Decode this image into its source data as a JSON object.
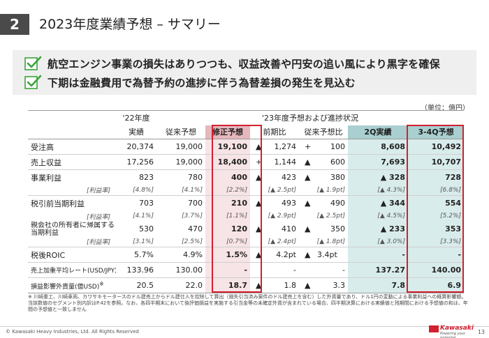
{
  "header": {
    "section_number": "2",
    "title": "2023年度業績予想 – サマリー"
  },
  "points": [
    "航空エンジン事業の損失はありつつも、収益改善や円安の追い風により黒字を確保",
    "下期は金融費用で為替予約の進捗に伴う為替差損の発生を見込む"
  ],
  "unit": "（単位：億円）",
  "table": {
    "head_fy22_top": "'22年度",
    "head_fy22_bottom": "実績",
    "head_fy23_group": "'23年度予想および進捗状況",
    "columns": [
      "従来予想",
      "修正予想",
      "前期比",
      "従来予想比",
      "2Q実績",
      "3-4Q予想"
    ],
    "rows": {
      "orders": {
        "label": "受注高",
        "fy22": "20,374",
        "prev": "19,000",
        "rev": "19,100",
        "yoy_sym": "▲",
        "yoy": "1,274",
        "vsprev_sym": "+",
        "vsprev": "100",
        "q2": "8,608",
        "q34": "10,492"
      },
      "revenue": {
        "label": "売上収益",
        "fy22": "17,256",
        "prev": "19,000",
        "rev": "18,400",
        "yoy_sym": "+",
        "yoy": "1,144",
        "vsprev_sym": "▲",
        "vsprev": "600",
        "q2": "7,693",
        "q34": "10,707"
      },
      "op": {
        "label": "事業利益",
        "fy22": "823",
        "prev": "780",
        "rev": "400",
        "yoy_sym": "▲",
        "yoy": "423",
        "vsprev_sym": "▲",
        "vsprev": "380",
        "q2": "▲ 328",
        "q34": "728"
      },
      "op_margin": {
        "label": "[利益率]",
        "fy22": "[4.8%]",
        "prev": "[4.1%]",
        "rev": "[2.2%]",
        "yoy": "[▲ 2.5pt]",
        "vsprev": "[▲ 1.9pt]",
        "q2": "[▲ 4.3%]",
        "q34": "[6.8%]"
      },
      "pretax": {
        "label": "税引前当期利益",
        "fy22": "703",
        "prev": "700",
        "rev": "210",
        "yoy_sym": "▲",
        "yoy": "493",
        "vsprev_sym": "▲",
        "vsprev": "490",
        "q2": "▲ 344",
        "q34": "554"
      },
      "pretax_margin": {
        "label": "[利益率]",
        "fy22": "[4.1%]",
        "prev": "[3.7%]",
        "rev": "[1.1%]",
        "yoy": "[▲ 2.9pt]",
        "vsprev": "[▲ 2.5pt]",
        "q2": "[▲ 4.5%]",
        "q34": "[5.2%]"
      },
      "net": {
        "label_line1": "親会社の所有者に帰属する",
        "label_line2": "当期利益",
        "fy22": "530",
        "prev": "470",
        "rev": "120",
        "yoy_sym": "▲",
        "yoy": "410",
        "vsprev_sym": "▲",
        "vsprev": "350",
        "q2": "▲ 233",
        "q34": "353"
      },
      "net_margin": {
        "label": "[利益率]",
        "fy22": "[3.1%]",
        "prev": "[2.5%]",
        "rev": "[0.7%]",
        "yoy": "[▲ 2.4pt]",
        "vsprev": "[▲ 1.8pt]",
        "q2": "[▲ 3.0%]",
        "q34": "[3.3%]"
      },
      "roic": {
        "label": "税後ROIC",
        "fy22": "5.7%",
        "prev": "4.9%",
        "rev": "1.5%",
        "yoy_sym": "▲",
        "yoy": "4.2pt",
        "vsprev_sym": "▲",
        "vsprev": "3.4pt",
        "q2": "-",
        "q34": "-"
      },
      "fx": {
        "label": "売上加重平均レート(USD/JPY)",
        "fy22": "133.96",
        "prev": "130.00",
        "rev": "-",
        "yoy": "-",
        "vsprev": "-",
        "q2": "137.27",
        "q34": "140.00"
      },
      "sens": {
        "label": "損益影響外貨量(億USD)",
        "label_sup": "※",
        "fy22": "20.5",
        "prev": "22.0",
        "rev": "18.7",
        "yoy_sym": "▲",
        "yoy": "1.8",
        "vsprev_sym": "▲",
        "vsprev": "3.3",
        "q2": "7.8",
        "q34": "6.9"
      }
    }
  },
  "note": "※ 川崎重工、川崎車両、カワサキモータースのドル建売上からドル建仕入を控除して算出（損失引当済み案件のドル建売上を含む）した外貨量であり、ドル1円の変動による事業利益への概算影響額。当該数値のセグメント別内訳はP.42を参照。なお、各四半期末において後評価損益を実施する引当金等の未確定外貨が含まれている場合、四半期決算における実績値と残期間における予想値の和は、年間の予想値と一致しません",
  "footer": {
    "copyright": "© Kawasaki Heavy Industries, Ltd. All Rights Reserved",
    "logo_name": "Kawasaki",
    "logo_tagline": "Powering your potential",
    "page": "13"
  },
  "colors": {
    "accent_red": "#d1202f",
    "highlight_pink": "#f7e4e6",
    "highlight_teal": "#d9ecec",
    "check_green": "#3aa33a"
  }
}
